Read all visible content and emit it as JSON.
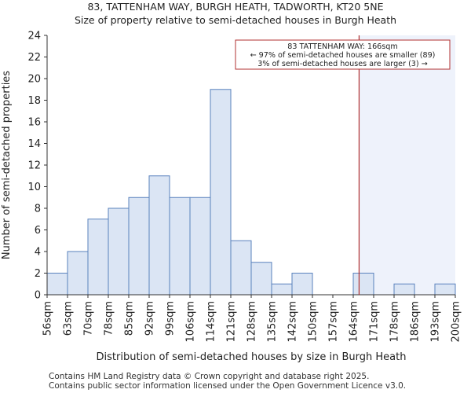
{
  "title": "83, TATTENHAM WAY, BURGH HEATH, TADWORTH, KT20 5NE",
  "subtitle": "Size of property relative to semi-detached houses in Burgh Heath",
  "footer": [
    "Contains HM Land Registry data © Crown copyright and database right 2025.",
    "Contains public sector information licensed under the Open Government Licence v3.0."
  ],
  "chart_data": {
    "type": "bar",
    "title": "83, TATTENHAM WAY, BURGH HEATH, TADWORTH, KT20 5NE",
    "subtitle": "Size of property relative to semi-detached houses in Burgh Heath",
    "xlabel": "Distribution of semi-detached houses by size in Burgh Heath",
    "ylabel": "Number of semi-detached properties",
    "tick_labels": [
      "56sqm",
      "63sqm",
      "70sqm",
      "78sqm",
      "85sqm",
      "92sqm",
      "99sqm",
      "106sqm",
      "114sqm",
      "121sqm",
      "128sqm",
      "135sqm",
      "142sqm",
      "150sqm",
      "157sqm",
      "164sqm",
      "171sqm",
      "178sqm",
      "186sqm",
      "193sqm",
      "200sqm"
    ],
    "values": [
      2,
      4,
      7,
      8,
      9,
      11,
      9,
      9,
      19,
      5,
      3,
      1,
      2,
      0,
      0,
      2,
      0,
      1,
      0,
      1
    ],
    "ylim": [
      0,
      24
    ],
    "yticks": [
      0,
      2,
      4,
      6,
      8,
      10,
      12,
      14,
      16,
      18,
      20,
      22,
      24
    ],
    "grid": false,
    "colors": {
      "bar_fill": "#dbe5f4",
      "bar_stroke": "#5a82bd",
      "marker": "#b03030",
      "highlight_bg": "#eef2fb",
      "annotation_border": "#b03030"
    },
    "marker": {
      "value_sqm": 166
    },
    "annotation": {
      "lines": [
        "83 TATTENHAM WAY: 166sqm",
        "← 97% of semi-detached houses are smaller (89)",
        "3% of semi-detached houses are larger (3) →"
      ]
    }
  }
}
